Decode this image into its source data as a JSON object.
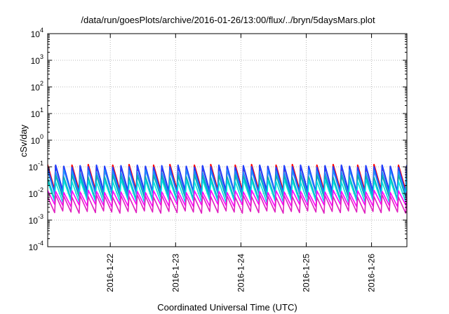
{
  "chart_data": {
    "type": "line",
    "title": "/data/run/goesPlots/archive/2016-01-26/13:00/flux/../bryn/5daysMars.plot",
    "xlabel": "Coordinated Universal Time (UTC)",
    "ylabel": "cSv/day",
    "yscale": "log",
    "ylim": [
      0.0001,
      10000
    ],
    "yticks": [
      {
        "base": "10",
        "exp": "-4",
        "value": 0.0001
      },
      {
        "base": "10",
        "exp": "-3",
        "value": 0.001
      },
      {
        "base": "10",
        "exp": "-2",
        "value": 0.01
      },
      {
        "base": "10",
        "exp": "-1",
        "value": 0.1
      },
      {
        "base": "10",
        "exp": "0",
        "value": 1
      },
      {
        "base": "10",
        "exp": "1",
        "value": 10
      },
      {
        "base": "10",
        "exp": "2",
        "value": 100
      },
      {
        "base": "10",
        "exp": "3",
        "value": 1000
      },
      {
        "base": "10",
        "exp": "4",
        "value": 10000
      }
    ],
    "xlim": [
      "2016-01-21T01:00",
      "2016-01-26T13:00"
    ],
    "xticks": [
      "2016-1-22",
      "2016-1-23",
      "2016-1-24",
      "2016-1-25",
      "2016-1-26"
    ],
    "grid": true,
    "pattern": {
      "description": "sawtooth oscillation, 8 cycles per day",
      "cycles_per_day": 8
    },
    "series": [
      {
        "color": "#ff0000",
        "peak": 0.11,
        "trough": 0.012
      },
      {
        "color": "#2040ff",
        "peak": 0.105,
        "trough": 0.011
      },
      {
        "color": "#1e90ff",
        "peak": 0.07,
        "trough": 0.009
      },
      {
        "color": "#00b0b0",
        "peak": 0.045,
        "trough": 0.0065
      },
      {
        "color": "#00e0e0",
        "peak": 0.03,
        "trough": 0.005
      },
      {
        "color": "#ff00ff",
        "peak": 0.012,
        "trough": 0.0035
      },
      {
        "color": "#e020c0",
        "peak": 0.008,
        "trough": 0.002
      }
    ]
  }
}
